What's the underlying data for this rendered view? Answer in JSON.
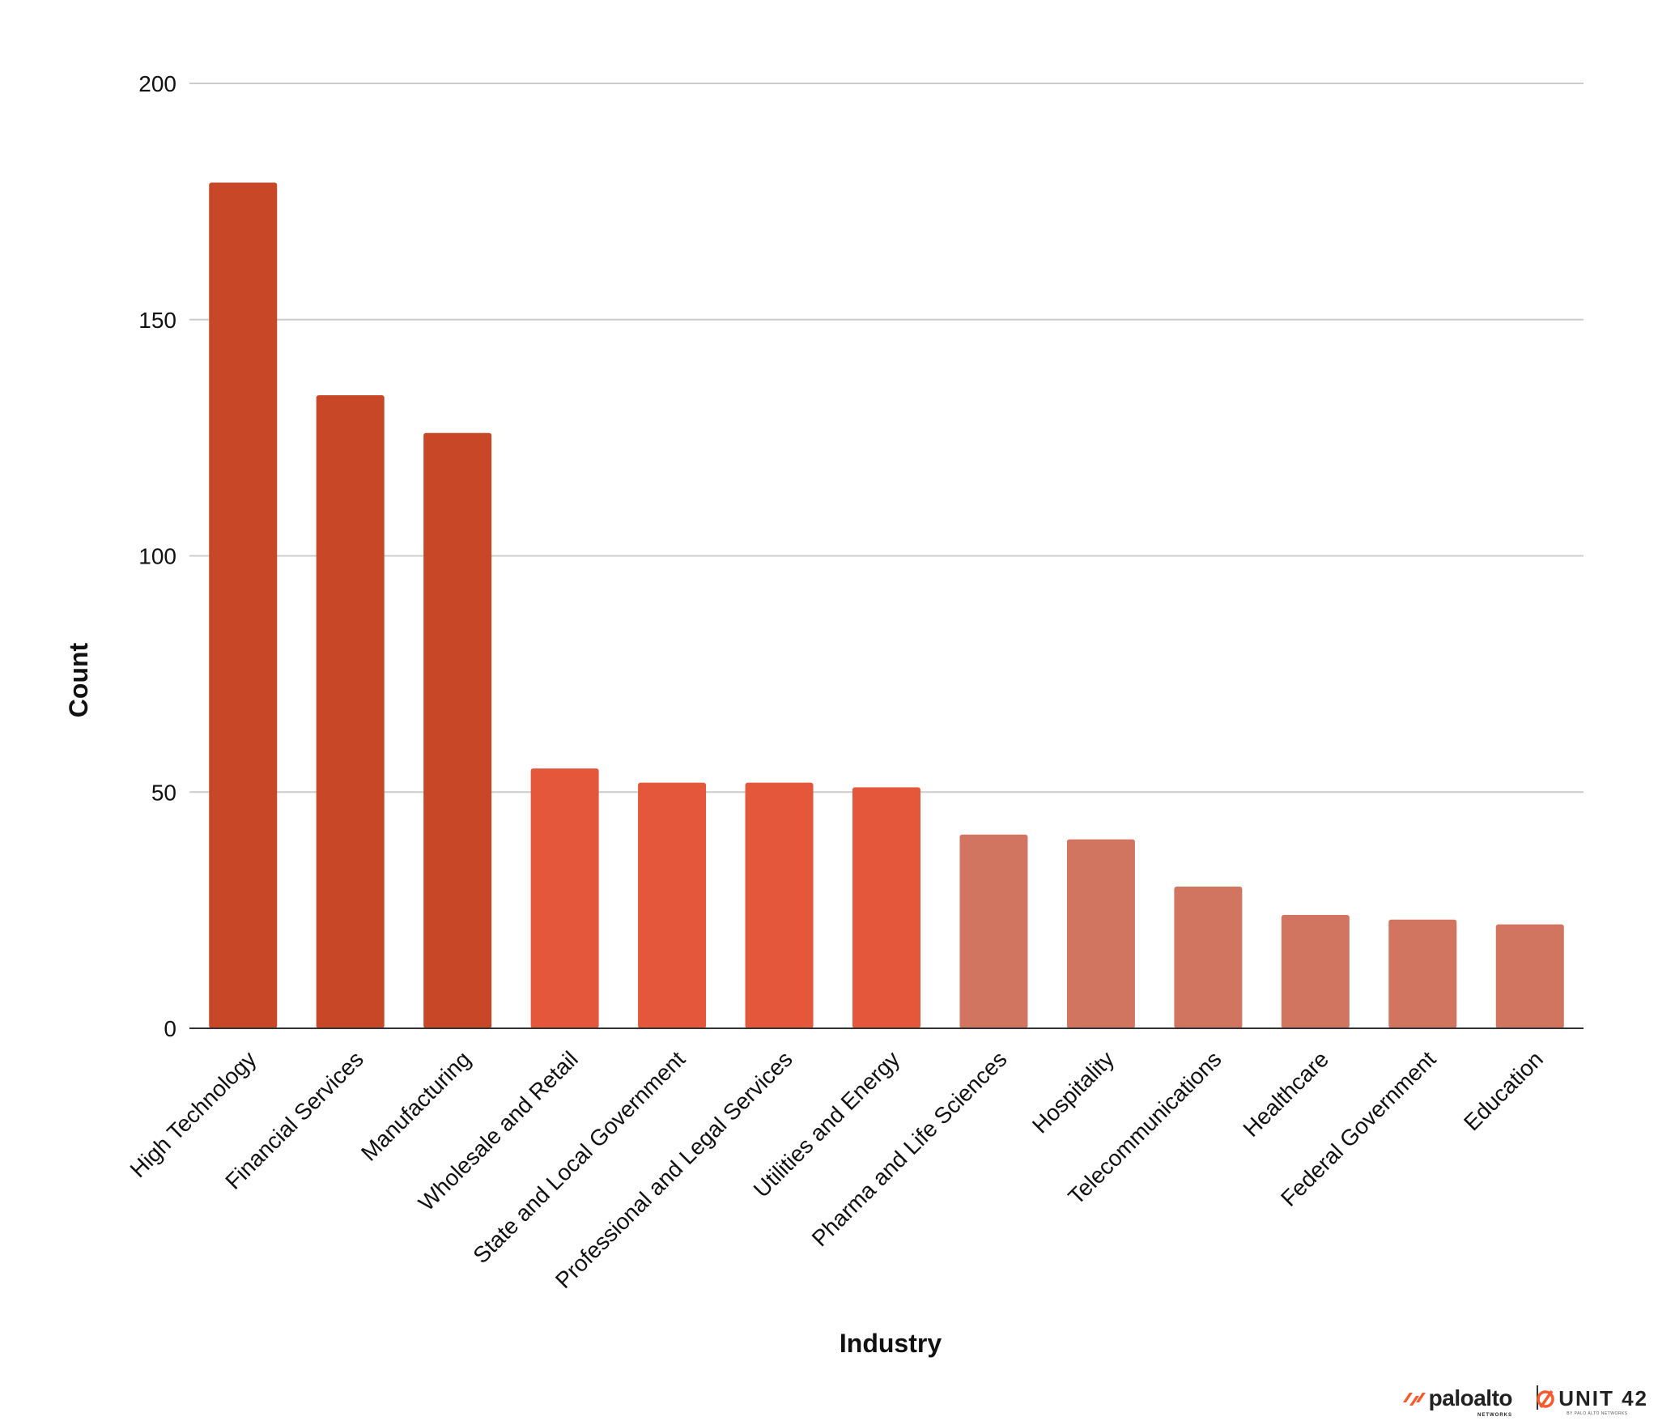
{
  "chart_data": {
    "type": "bar",
    "title": "",
    "xlabel": "Industry",
    "ylabel": "Count",
    "ylim": [
      0,
      200
    ],
    "yticks": [
      "0",
      "50",
      "100",
      "150",
      "200"
    ],
    "grid": true,
    "categories": [
      "High Technology",
      "Financial Services",
      "Manufacturing",
      "Wholesale and Retail",
      "State and Local Government",
      "Professional and Legal Services",
      "Utilities and Energy",
      "Pharma and Life Sciences",
      "Hospitality",
      "Telecommunications",
      "Healthcare",
      "Federal Government",
      "Education"
    ],
    "values": [
      179,
      134,
      126,
      55,
      52,
      52,
      51,
      41,
      40,
      30,
      24,
      23,
      22
    ],
    "bar_colors": [
      "#c84727",
      "#c84727",
      "#c84727",
      "#e5573b",
      "#e5573b",
      "#e5573b",
      "#e5573b",
      "#d27560",
      "#d27560",
      "#d27560",
      "#d27560",
      "#d27560",
      "#d27560"
    ],
    "gridline_color": "#cccccc",
    "axis_color": "#333333"
  },
  "branding": {
    "paloalto_text": "paloalto",
    "paloalto_sub": "NETWORKS",
    "unit42_text": "UNIT 42",
    "unit42_sub": "BY PALO ALTO NETWORKS",
    "accent_color": "#fa582d"
  }
}
